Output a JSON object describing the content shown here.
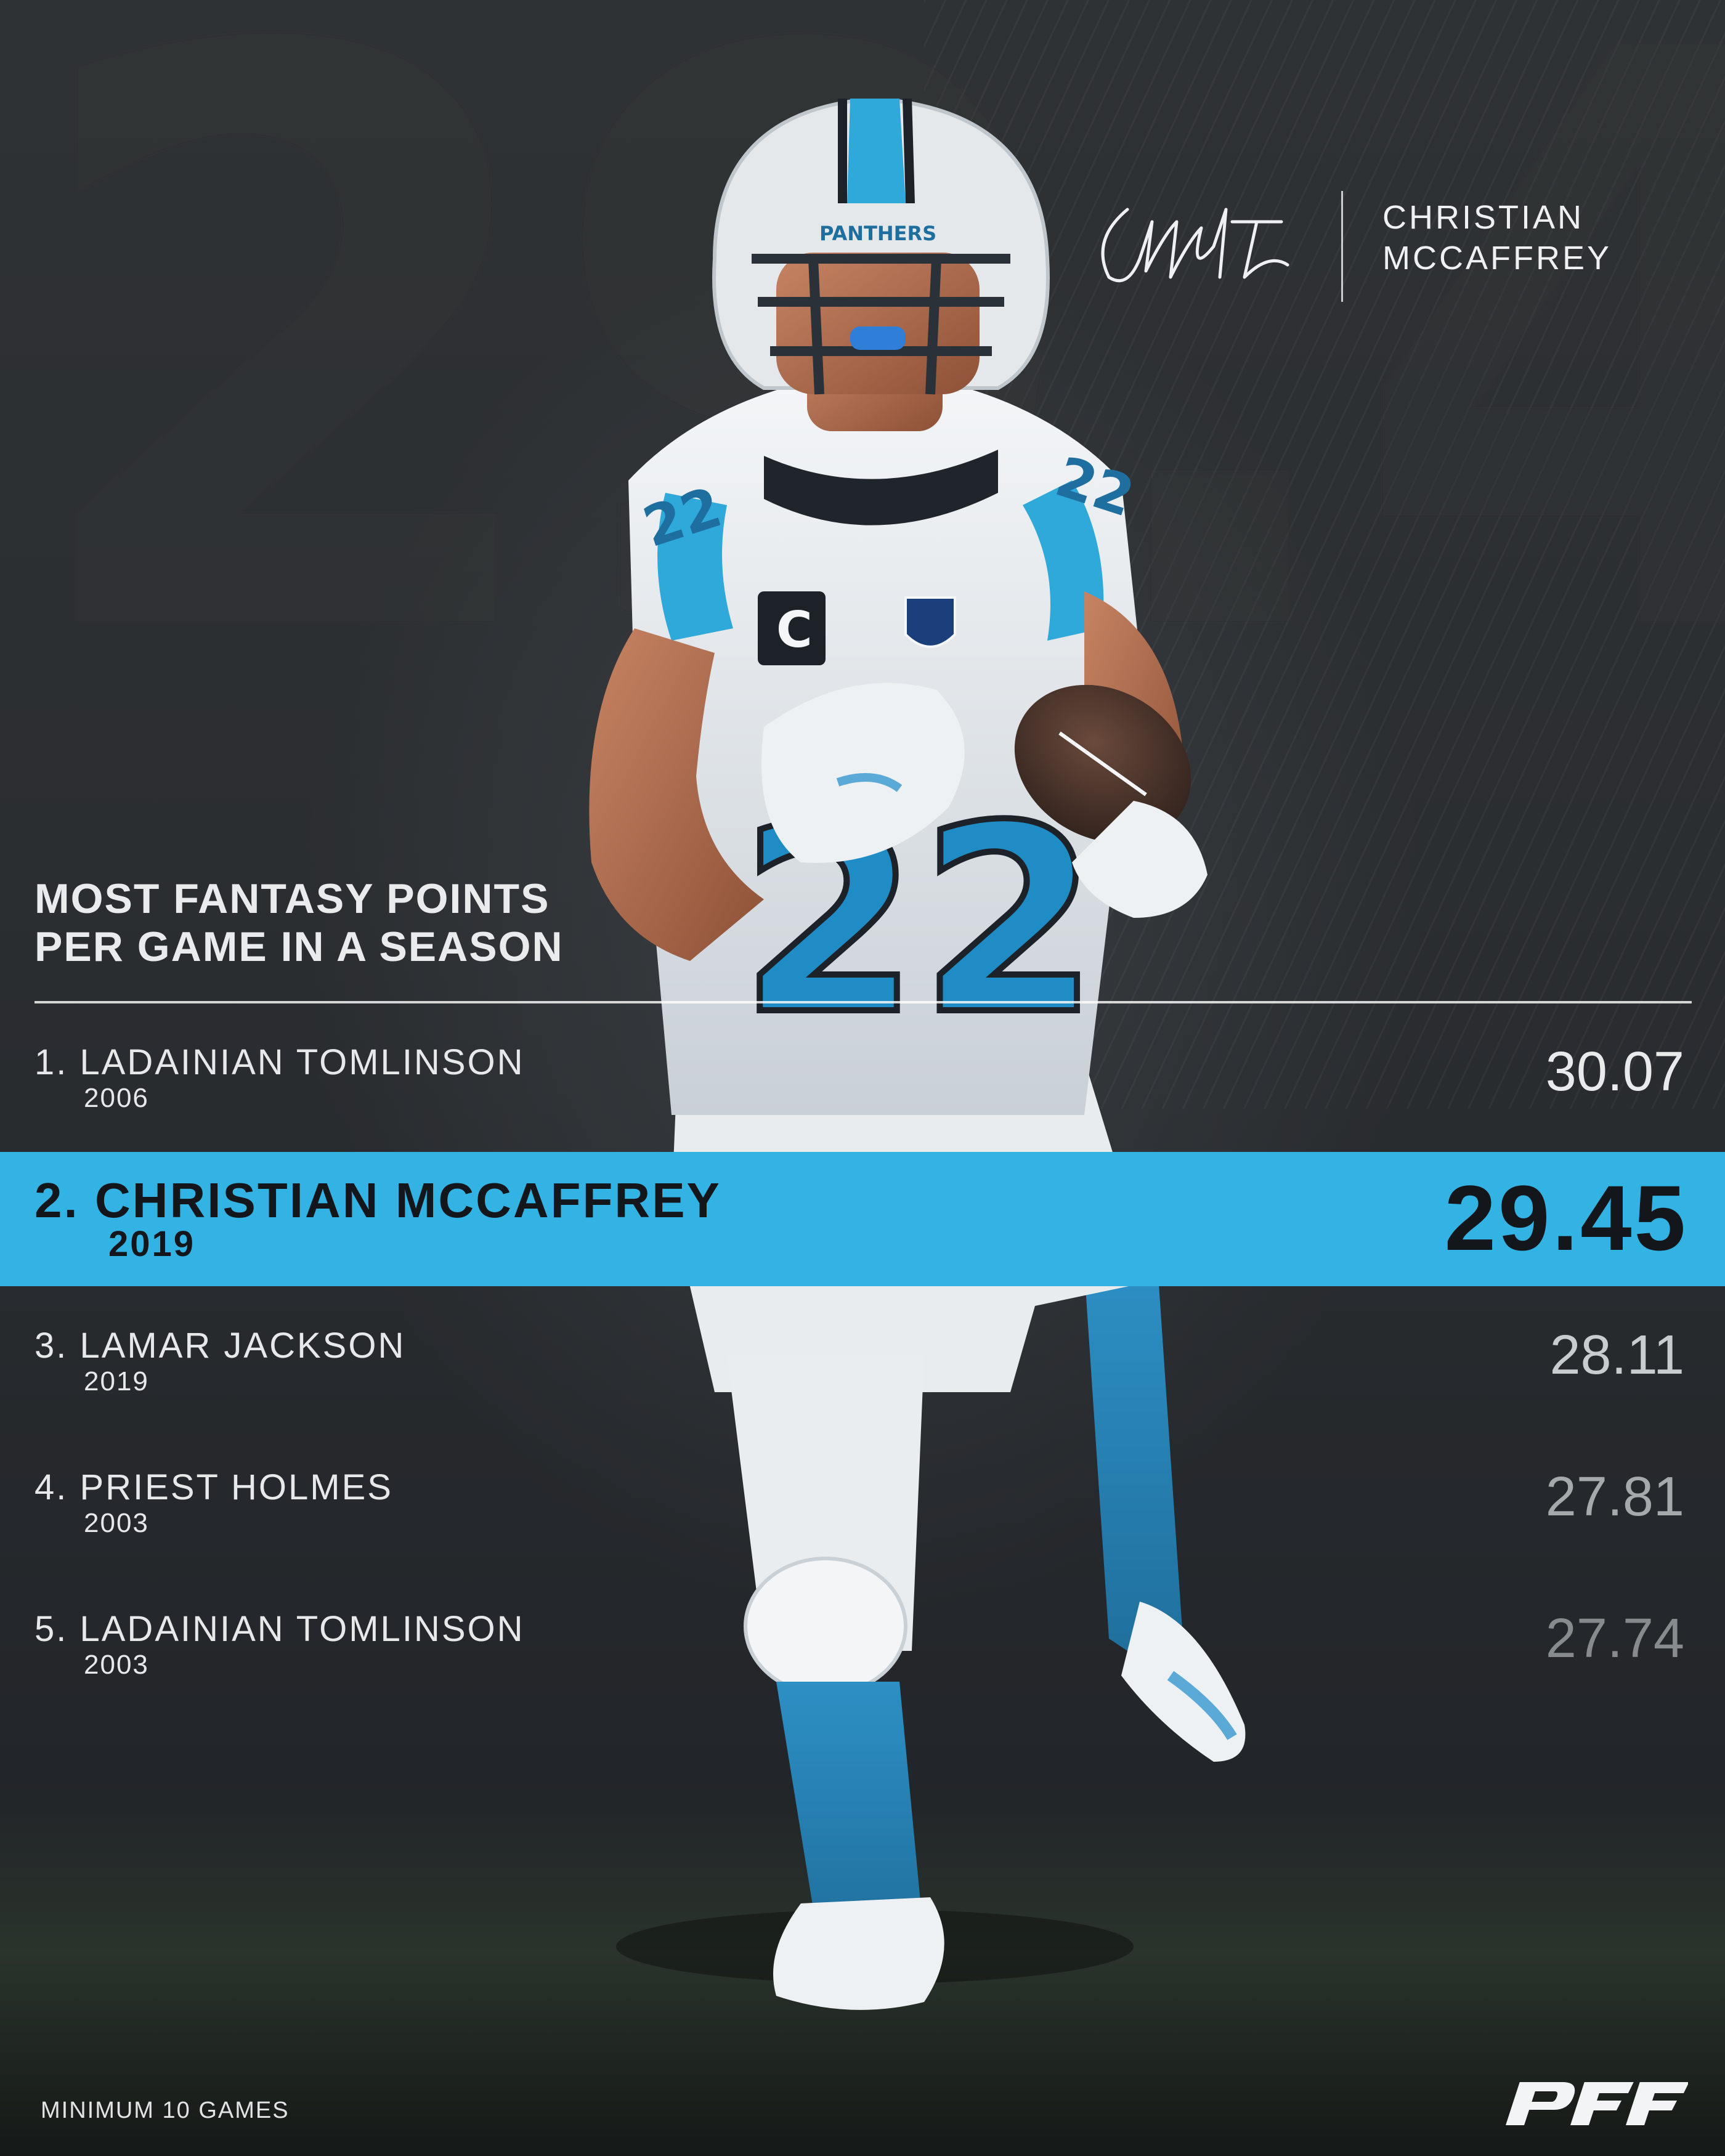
{
  "hero": {
    "big_number": "29.45",
    "player_name_line1": "CHRISTIAN",
    "player_name_line2": "MCCAFFREY",
    "jersey_number": "22",
    "helmet_text": "PANTHERS",
    "captain_patch": "C",
    "league_badge": "NFL",
    "signature": "CMc22"
  },
  "title": {
    "line1": "MOST FANTASY POINTS",
    "line2": "PER GAME IN A SEASON"
  },
  "rankings": [
    {
      "name": "1. LADAINIAN TOMLINSON",
      "year": "2006",
      "value": "30.07"
    },
    {
      "name": "2. CHRISTIAN MCCAFFREY",
      "year": "2019",
      "value": "29.45"
    },
    {
      "name": "3. LAMAR JACKSON",
      "year": "2019",
      "value": "28.11"
    },
    {
      "name": "4. PRIEST HOLMES",
      "year": "2003",
      "value": "27.81"
    },
    {
      "name": "5. LADAINIAN TOMLINSON",
      "year": "2003",
      "value": "27.74"
    }
  ],
  "colors": {
    "accent": "#33b3e3",
    "background": "#2a2d30",
    "text": "#e9ebed",
    "highlight_text": "#13171b"
  },
  "footer": {
    "note": "MINIMUM 10 GAMES",
    "logo": "PFF"
  }
}
